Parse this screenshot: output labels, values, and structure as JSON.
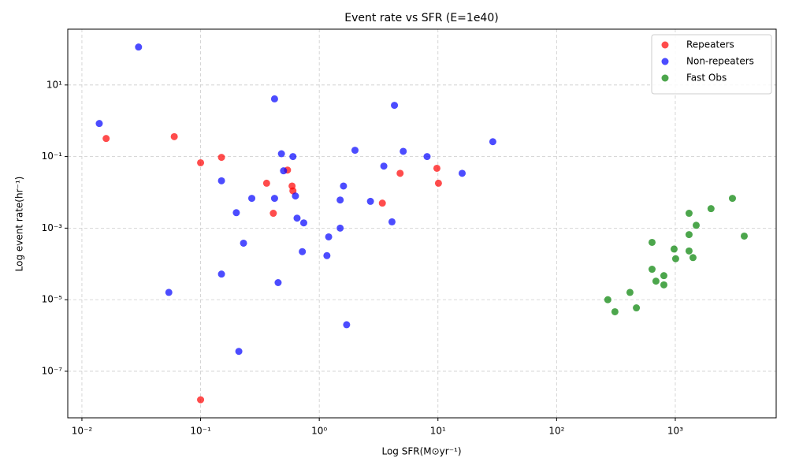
{
  "chart_data": {
    "type": "scatter",
    "title": "Event rate vs SFR (E=1e40)",
    "x_label": "Log SFR(M⊙yr⁻¹)",
    "y_label": "Log event rate(hr⁻¹)",
    "xscale": "log",
    "yscale": "log",
    "grid": true,
    "legend": "upper right",
    "xlim": [
      0.0076,
      7080
    ],
    "ylim": [
      5e-09,
      363
    ],
    "xticks": [
      {
        "value": 0.01,
        "label": "10⁻²"
      },
      {
        "value": 0.1,
        "label": "10⁻¹"
      },
      {
        "value": 1,
        "label": "10⁰"
      },
      {
        "value": 10,
        "label": "10¹"
      },
      {
        "value": 100,
        "label": "10²"
      },
      {
        "value": 1000,
        "label": "10³"
      }
    ],
    "yticks": [
      {
        "value": 1e-07,
        "label": "10⁻⁷"
      },
      {
        "value": 1e-05,
        "label": "10⁻⁵"
      },
      {
        "value": 0.001,
        "label": "10⁻³"
      },
      {
        "value": 0.1,
        "label": "10⁻¹"
      },
      {
        "value": 10,
        "label": "10¹"
      }
    ],
    "series": [
      {
        "name": "Repeaters",
        "color": "rgba(255,0,0,0.7)",
        "x": [
          0.016,
          0.06,
          0.1,
          0.15,
          0.36,
          0.54,
          0.59,
          0.6,
          0.41,
          3.4,
          4.8,
          9.8,
          10.1,
          0.1
        ],
        "values": [
          0.32,
          0.36,
          0.067,
          0.095,
          0.018,
          0.042,
          0.015,
          0.011,
          0.0026,
          0.005,
          0.034,
          0.047,
          0.018,
          1.6e-08
        ]
      },
      {
        "name": "Non-repeaters",
        "color": "rgba(0,0,255,0.7)",
        "x": [
          0.03,
          0.014,
          0.42,
          4.3,
          0.48,
          0.6,
          2.0,
          5.1,
          8.1,
          29,
          3.5,
          0.5,
          16,
          0.15,
          1.6,
          0.27,
          0.42,
          0.63,
          1.5,
          2.7,
          0.2,
          0.65,
          0.74,
          4.1,
          1.5,
          1.2,
          0.23,
          0.72,
          1.16,
          0.15,
          0.45,
          0.054,
          1.7,
          0.21
        ],
        "values": [
          115,
          0.84,
          4.1,
          2.7,
          0.12,
          0.1,
          0.15,
          0.14,
          0.1,
          0.26,
          0.054,
          0.04,
          0.034,
          0.021,
          0.015,
          0.0068,
          0.0068,
          0.0079,
          0.0061,
          0.0056,
          0.0027,
          0.0019,
          0.0014,
          0.0015,
          0.001,
          0.00057,
          0.00038,
          0.00022,
          0.00017,
          5.2e-05,
          3e-05,
          1.6e-05,
          2e-06,
          3.6e-07
        ]
      },
      {
        "name": "Fast Obs",
        "color": "rgba(0,128,0,0.7)",
        "x": [
          270,
          310,
          415,
          470,
          637,
          637,
          687,
          801,
          801,
          977,
          1007,
          1306,
          1306,
          1306,
          1410,
          1500,
          2000,
          3030,
          3810
        ],
        "values": [
          1e-05,
          4.6e-06,
          1.6e-05,
          5.9e-06,
          0.0004,
          7.1e-05,
          3.3e-05,
          4.7e-05,
          2.6e-05,
          0.00026,
          0.00014,
          0.0026,
          0.00066,
          0.00023,
          0.00015,
          0.0012,
          0.0035,
          0.0068,
          0.0006
        ]
      }
    ]
  }
}
